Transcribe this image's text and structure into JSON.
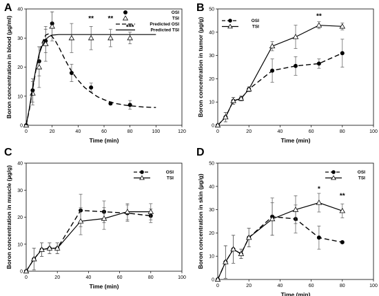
{
  "chart_data": [
    {
      "panel": "A",
      "type": "line",
      "xlabel": "Time (min)",
      "ylabel": "Boron concentration in blood (µg/ml)",
      "xlim": [
        0,
        120
      ],
      "ylim": [
        0,
        40
      ],
      "xticks": [
        0,
        20,
        40,
        60,
        80,
        100,
        120
      ],
      "yticks": [
        0,
        10,
        20,
        30,
        40
      ],
      "legend_position": "top-right",
      "legend": [
        {
          "label": "OSI",
          "style": "filled-circle"
        },
        {
          "label": "TSI",
          "style": "open-triangle"
        },
        {
          "label": "Predicted OSI",
          "style": "dashed-line"
        },
        {
          "label": "Predicted TSI",
          "style": "solid-line"
        }
      ],
      "series": [
        {
          "name": "OSI",
          "marker": "circle",
          "line": "none",
          "x": [
            0,
            5,
            10,
            15,
            20,
            35,
            50,
            65,
            80
          ],
          "y": [
            0,
            12,
            22,
            29,
            35,
            18,
            13,
            7.5,
            7
          ],
          "err": [
            0,
            4,
            5,
            4,
            4,
            3,
            1.5,
            0.5,
            1.5
          ]
        },
        {
          "name": "TSI",
          "marker": "triangle",
          "line": "none",
          "x": [
            0,
            5,
            10,
            15,
            20,
            35,
            50,
            65,
            80
          ],
          "y": [
            0,
            11,
            20,
            28,
            34,
            30,
            30,
            30,
            30
          ],
          "err": [
            0,
            4,
            7,
            6,
            5,
            5,
            4,
            3,
            2
          ]
        },
        {
          "name": "Predicted OSI",
          "marker": "none",
          "line": "dashed",
          "x": [
            0,
            2.5,
            5,
            7.5,
            10,
            12.5,
            15,
            17.5,
            20,
            22.5,
            25,
            30,
            35,
            40,
            45,
            50,
            55,
            60,
            65,
            70,
            75,
            80,
            90,
            100
          ],
          "y": [
            0,
            5.5,
            12.5,
            19,
            24.5,
            28.5,
            31,
            31.5,
            30.5,
            29,
            27,
            22.5,
            18.5,
            15.5,
            13,
            11.3,
            9.8,
            8.8,
            8,
            7.4,
            7,
            6.7,
            6.3,
            6.1
          ]
        },
        {
          "name": "Predicted TSI",
          "marker": "none",
          "line": "solid",
          "x": [
            0,
            2.5,
            5,
            7.5,
            10,
            12.5,
            15,
            17.5,
            20,
            25,
            30,
            40,
            50,
            60,
            80,
            100
          ],
          "y": [
            0,
            6,
            13,
            19.5,
            24.5,
            27.5,
            29.5,
            30.5,
            31,
            31.2,
            31.2,
            31.2,
            31.2,
            31.2,
            31.2,
            31.2
          ]
        }
      ],
      "annotations": [
        {
          "text": "**",
          "x": 50,
          "y": 36
        },
        {
          "text": "**",
          "x": 65,
          "y": 36
        },
        {
          "text": "***",
          "x": 80,
          "y": 33
        }
      ]
    },
    {
      "panel": "B",
      "type": "line",
      "xlabel": "Time (min)",
      "ylabel": "Boron concentration in tumor (µg/g)",
      "xlim": [
        0,
        100
      ],
      "ylim": [
        0,
        50
      ],
      "xticks": [
        0,
        20,
        40,
        60,
        80,
        100
      ],
      "yticks": [
        0,
        10,
        20,
        30,
        40,
        50
      ],
      "legend_position": "top-left",
      "legend": [
        {
          "label": "OSI",
          "style": "dashed-filled-circle"
        },
        {
          "label": "TSI",
          "style": "solid-open-triangle"
        }
      ],
      "series": [
        {
          "name": "OSI",
          "marker": "circle",
          "line": "dashed",
          "x": [
            0,
            5,
            10,
            15,
            20,
            35,
            50,
            65,
            80
          ],
          "y": [
            0,
            3.5,
            10.5,
            11.5,
            15.5,
            23.5,
            25.5,
            26.5,
            31
          ],
          "err": [
            0,
            2,
            1.5,
            1,
            1,
            5,
            4,
            2,
            6
          ]
        },
        {
          "name": "TSI",
          "marker": "triangle",
          "line": "solid",
          "x": [
            0,
            5,
            10,
            15,
            20,
            35,
            50,
            65,
            80
          ],
          "y": [
            0,
            3.5,
            10.5,
            11.5,
            15.5,
            34,
            38,
            43,
            42.5
          ],
          "err": [
            0,
            2,
            1.5,
            1,
            1,
            2,
            5,
            1.5,
            1.5
          ]
        }
      ],
      "annotations": [
        {
          "text": "**",
          "x": 65,
          "y": 46
        }
      ]
    },
    {
      "panel": "C",
      "type": "line",
      "xlabel": "Time (min)",
      "ylabel": "Boron concentration in muscle (µg/g)",
      "xlim": [
        0,
        100
      ],
      "ylim": [
        0,
        40
      ],
      "xticks": [
        0,
        20,
        40,
        60,
        80,
        100
      ],
      "yticks": [
        0,
        10,
        20,
        30,
        40
      ],
      "legend_position": "top-right",
      "legend": [
        {
          "label": "OSI",
          "style": "dashed-filled-circle"
        },
        {
          "label": "TSI",
          "style": "solid-open-triangle"
        }
      ],
      "series": [
        {
          "name": "OSI",
          "marker": "circle",
          "line": "dashed",
          "x": [
            0,
            5,
            10,
            15,
            20,
            35,
            50,
            65,
            80
          ],
          "y": [
            0,
            4.5,
            8,
            8.5,
            8.5,
            22.5,
            22,
            21.5,
            20.5
          ],
          "err": [
            0,
            4,
            2.5,
            2,
            2,
            6,
            4,
            3,
            2.5
          ]
        },
        {
          "name": "TSI",
          "marker": "triangle",
          "line": "solid",
          "x": [
            0,
            5,
            10,
            15,
            20,
            35,
            50,
            65,
            80
          ],
          "y": [
            0,
            4.5,
            8,
            8.5,
            8.5,
            18.5,
            19.5,
            22,
            22
          ],
          "err": [
            0,
            4,
            2.5,
            2,
            2,
            5,
            4,
            3,
            3
          ]
        }
      ],
      "annotations": []
    },
    {
      "panel": "D",
      "type": "line",
      "xlabel": "Time (min)",
      "ylabel": "Boron concentration in skin (µg/g)",
      "xlim": [
        0,
        100
      ],
      "ylim": [
        0,
        50
      ],
      "xticks": [
        0,
        20,
        40,
        60,
        80,
        100
      ],
      "yticks": [
        0,
        10,
        20,
        30,
        40,
        50
      ],
      "legend_position": "top-right",
      "legend": [
        {
          "label": "OSI",
          "style": "dashed-filled-circle"
        },
        {
          "label": "TSI",
          "style": "solid-open-triangle"
        }
      ],
      "series": [
        {
          "name": "OSI",
          "marker": "circle",
          "line": "dashed",
          "x": [
            0,
            5,
            10,
            15,
            20,
            35,
            50,
            65,
            80
          ],
          "y": [
            0,
            7.5,
            13,
            11,
            18,
            27,
            26,
            18,
            16
          ],
          "err": [
            0,
            7,
            6,
            2,
            4,
            8,
            6,
            5,
            0.5
          ]
        },
        {
          "name": "TSI",
          "marker": "triangle",
          "line": "solid",
          "x": [
            0,
            5,
            10,
            15,
            20,
            35,
            50,
            65,
            80
          ],
          "y": [
            0,
            7.5,
            13,
            11,
            18,
            26,
            30,
            33,
            29.5
          ],
          "err": [
            0,
            7,
            6,
            2,
            4,
            7,
            6,
            4,
            3
          ]
        }
      ],
      "annotations": [
        {
          "text": "*",
          "x": 65,
          "y": 38
        },
        {
          "text": "**",
          "x": 80,
          "y": 35
        }
      ]
    }
  ]
}
